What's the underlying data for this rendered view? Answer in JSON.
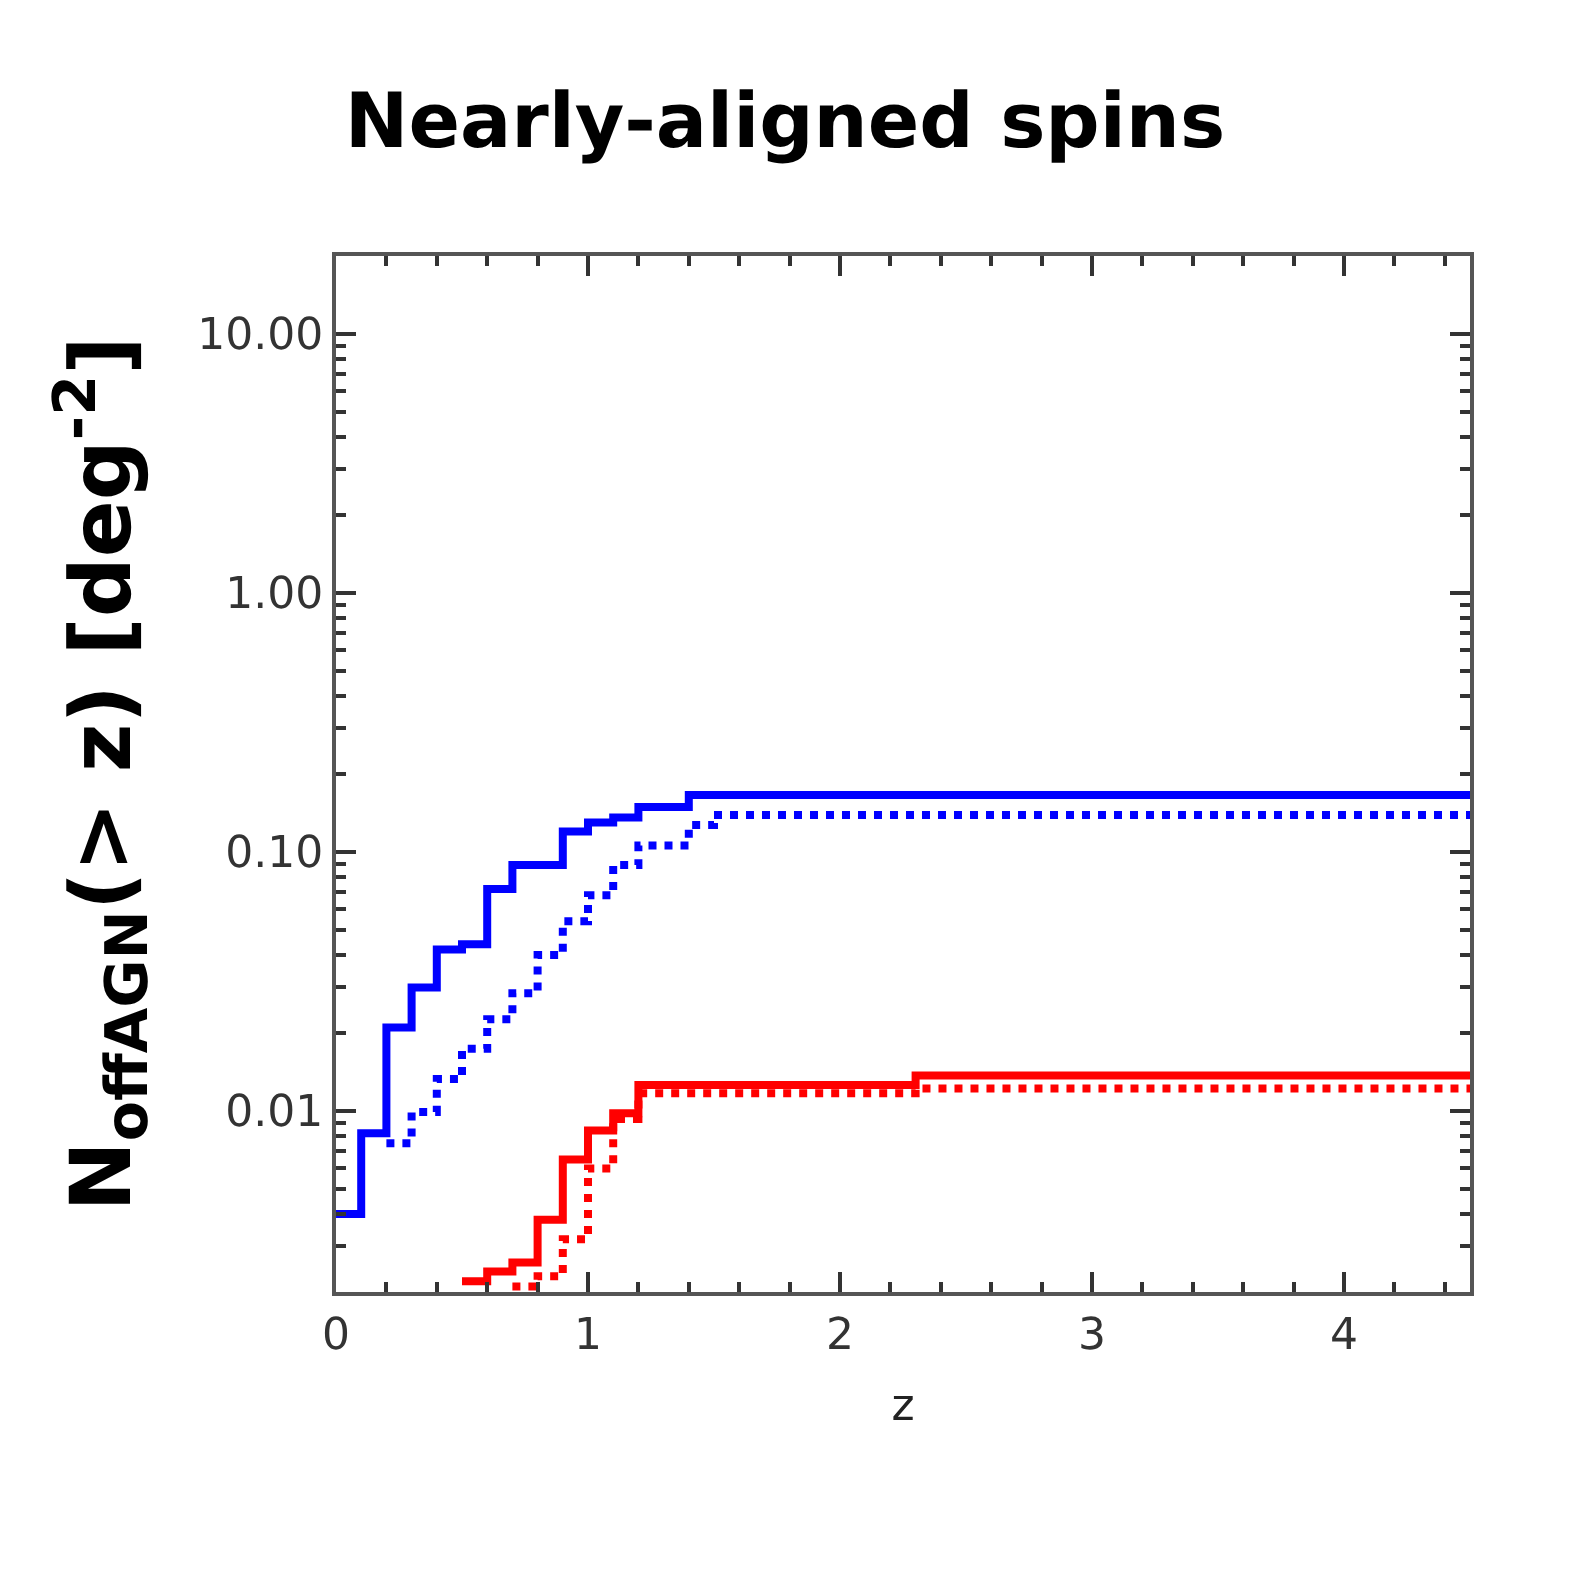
{
  "chart_data": {
    "type": "step",
    "title": "Nearly-aligned spins",
    "xlabel": "z",
    "ylabel": "N$_{offAGN}$(> z) [deg$^{-2}$]",
    "log": "y",
    "xlim": [
      0,
      4.5
    ],
    "ylim": [
      0.002,
      20
    ],
    "xticks": [
      0,
      1,
      2,
      3,
      4
    ],
    "yticks": [
      {
        "value": 0.01,
        "label": "0.01"
      },
      {
        "value": 0.1,
        "label": "0.10"
      },
      {
        "value": 1,
        "label": "1.00"
      },
      {
        "value": 10,
        "label": "10.00"
      }
    ],
    "series": [
      {
        "color": "#0000ff",
        "line_style": "solid",
        "x": [
          0,
          0.1,
          0.2,
          0.3,
          0.4,
          0.5,
          0.6,
          0.7,
          0.9,
          1.0,
          1.1,
          1.2,
          1.4,
          4.5
        ],
        "values": [
          0.004,
          0.0082,
          0.021,
          0.03,
          0.042,
          0.044,
          0.072,
          0.089,
          0.12,
          0.13,
          0.136,
          0.149,
          0.166,
          0.166
        ]
      },
      {
        "color": "#0000ff",
        "line_style": "dotted",
        "x": [
          0.2,
          0.3,
          0.4,
          0.5,
          0.6,
          0.7,
          0.8,
          0.9,
          1.0,
          1.1,
          1.2,
          1.4,
          1.5,
          4.5
        ],
        "values": [
          0.0075,
          0.0099,
          0.0133,
          0.0174,
          0.0226,
          0.0285,
          0.04,
          0.054,
          0.068,
          0.089,
          0.106,
          0.127,
          0.139,
          0.139
        ]
      },
      {
        "color": "#ff0000",
        "line_style": "solid",
        "x": [
          0.5,
          0.6,
          0.7,
          0.8,
          0.9,
          1.0,
          1.1,
          1.2,
          2.3,
          4.5
        ],
        "values": [
          0.0022,
          0.0024,
          0.0026,
          0.0038,
          0.0065,
          0.0084,
          0.0098,
          0.0126,
          0.0137,
          0.0137
        ]
      },
      {
        "color": "#ff0000",
        "line_style": "dotted",
        "x": [
          0.7,
          0.8,
          0.9,
          1.0,
          1.1,
          1.2,
          2.3,
          4.5
        ],
        "values": [
          0.0021,
          0.0023,
          0.0032,
          0.006,
          0.0093,
          0.0117,
          0.0122,
          0.0122
        ]
      }
    ]
  }
}
